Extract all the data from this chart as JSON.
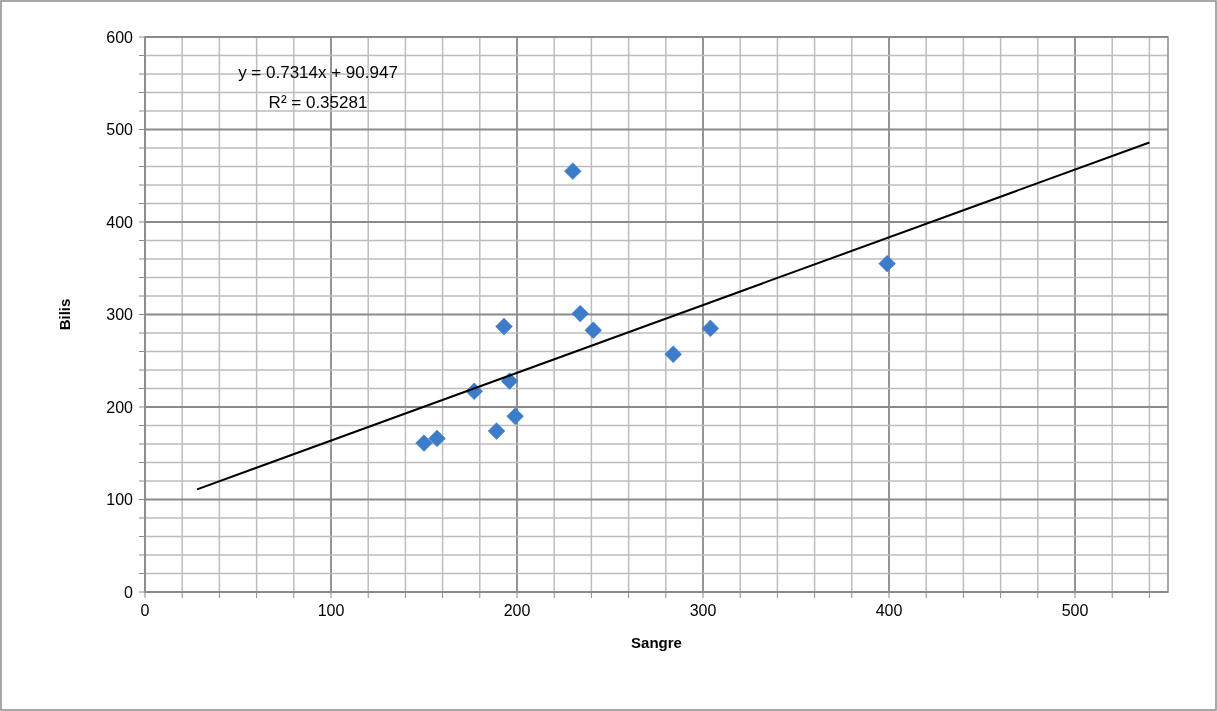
{
  "chart_data": {
    "type": "scatter",
    "xlabel": "Sangre",
    "ylabel": "Bilis",
    "xlim": [
      0,
      550
    ],
    "ylim": [
      0,
      600
    ],
    "xticks": [
      0,
      {
        "value": 20,
        "label": null
      },
      {
        "value": 40,
        "label": null
      },
      {
        "value": 60,
        "label": null
      },
      {
        "value": 80,
        "label": null
      },
      100,
      {
        "value": 120,
        "label": null
      },
      {
        "value": 140,
        "label": null
      },
      {
        "value": 160,
        "label": null
      },
      {
        "value": 180,
        "label": null
      },
      200,
      {
        "value": 220,
        "label": null
      },
      {
        "value": 240,
        "label": null
      },
      {
        "value": 260,
        "label": null
      },
      {
        "value": 280,
        "label": null
      },
      300,
      {
        "value": 320,
        "label": null
      },
      {
        "value": 340,
        "label": null
      },
      {
        "value": 360,
        "label": null
      },
      {
        "value": 380,
        "label": null
      },
      400,
      {
        "value": 420,
        "label": null
      },
      {
        "value": 440,
        "label": null
      },
      {
        "value": 460,
        "label": null
      },
      {
        "value": 480,
        "label": null
      },
      500,
      {
        "value": 520,
        "label": null
      },
      {
        "value": 540,
        "label": null
      }
    ],
    "yticks": [
      0,
      {
        "value": 20,
        "label": null
      },
      {
        "value": 40,
        "label": null
      },
      {
        "value": 60,
        "label": null
      },
      {
        "value": 80,
        "label": null
      },
      100,
      {
        "value": 120,
        "label": null
      },
      {
        "value": 140,
        "label": null
      },
      {
        "value": 160,
        "label": null
      },
      {
        "value": 180,
        "label": null
      },
      200,
      {
        "value": 220,
        "label": null
      },
      {
        "value": 240,
        "label": null
      },
      {
        "value": 260,
        "label": null
      },
      {
        "value": 280,
        "label": null
      },
      300,
      {
        "value": 320,
        "label": null
      },
      {
        "value": 340,
        "label": null
      },
      {
        "value": 360,
        "label": null
      },
      {
        "value": 380,
        "label": null
      },
      400,
      {
        "value": 420,
        "label": null
      },
      {
        "value": 440,
        "label": null
      },
      {
        "value": 460,
        "label": null
      },
      {
        "value": 480,
        "label": null
      },
      500,
      {
        "value": 520,
        "label": null
      },
      {
        "value": 540,
        "label": null
      },
      {
        "value": 560,
        "label": null
      },
      {
        "value": 580,
        "label": null
      },
      600
    ],
    "grid": true,
    "annotations": [
      "y = 0.7314x + 90.947",
      "R² = 0.35281"
    ],
    "series": [
      {
        "color": "#3d7cc9",
        "marker": "diamond",
        "x": [
          230,
          234,
          241,
          193,
          304,
          284,
          196,
          177,
          199,
          189,
          157,
          150,
          399
        ],
        "values": [
          455,
          301,
          283,
          287,
          285,
          257,
          228,
          217,
          190,
          174,
          166,
          161,
          355
        ]
      },
      {
        "type": "line",
        "color": "#000000",
        "x": [
          28,
          540
        ],
        "values": [
          111,
          486
        ]
      }
    ]
  }
}
